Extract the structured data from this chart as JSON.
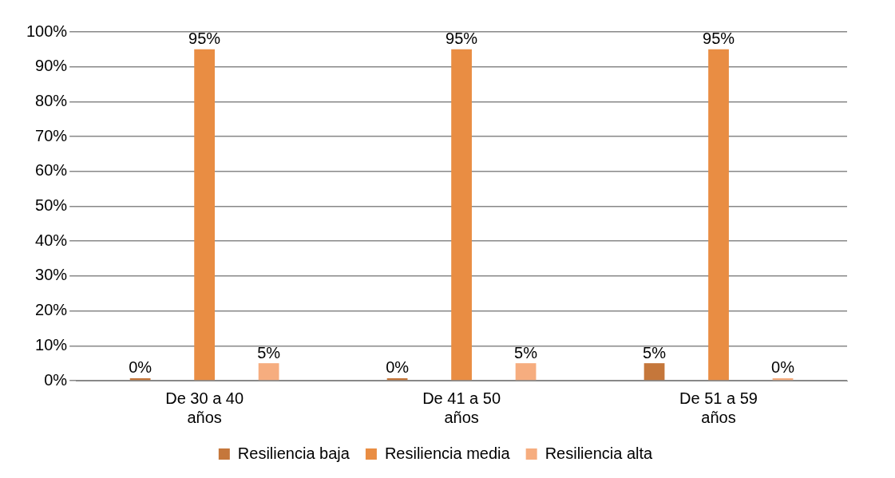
{
  "chart_data": {
    "type": "bar",
    "categories": [
      "De 30 a 40 años",
      "De 41 a 50 años",
      "De 51 a 59 años"
    ],
    "series": [
      {
        "name": "Resiliencia baja",
        "color": "#c5773b",
        "values": [
          0,
          0,
          5
        ],
        "value_labels": [
          "0%",
          "0%",
          "5%"
        ]
      },
      {
        "name": "Resiliencia media",
        "color": "#e98d43",
        "values": [
          95,
          95,
          95
        ],
        "value_labels": [
          "95%",
          "95%",
          "95%"
        ]
      },
      {
        "name": "Resiliencia alta",
        "color": "#f6ad7f",
        "values": [
          5,
          5,
          0
        ],
        "value_labels": [
          "5%",
          "5%",
          "0%"
        ]
      }
    ],
    "ylim": [
      0,
      100
    ],
    "yticks": [
      {
        "value": 0,
        "label": "0%"
      },
      {
        "value": 10,
        "label": "10%"
      },
      {
        "value": 20,
        "label": "20%"
      },
      {
        "value": 30,
        "label": "30%"
      },
      {
        "value": 40,
        "label": "40%"
      },
      {
        "value": 50,
        "label": "50%"
      },
      {
        "value": 60,
        "label": "60%"
      },
      {
        "value": 70,
        "label": "70%"
      },
      {
        "value": 80,
        "label": "80%"
      },
      {
        "value": 90,
        "label": "90%"
      },
      {
        "value": 100,
        "label": "100%"
      }
    ],
    "grid": "y",
    "legend": "bottom"
  }
}
